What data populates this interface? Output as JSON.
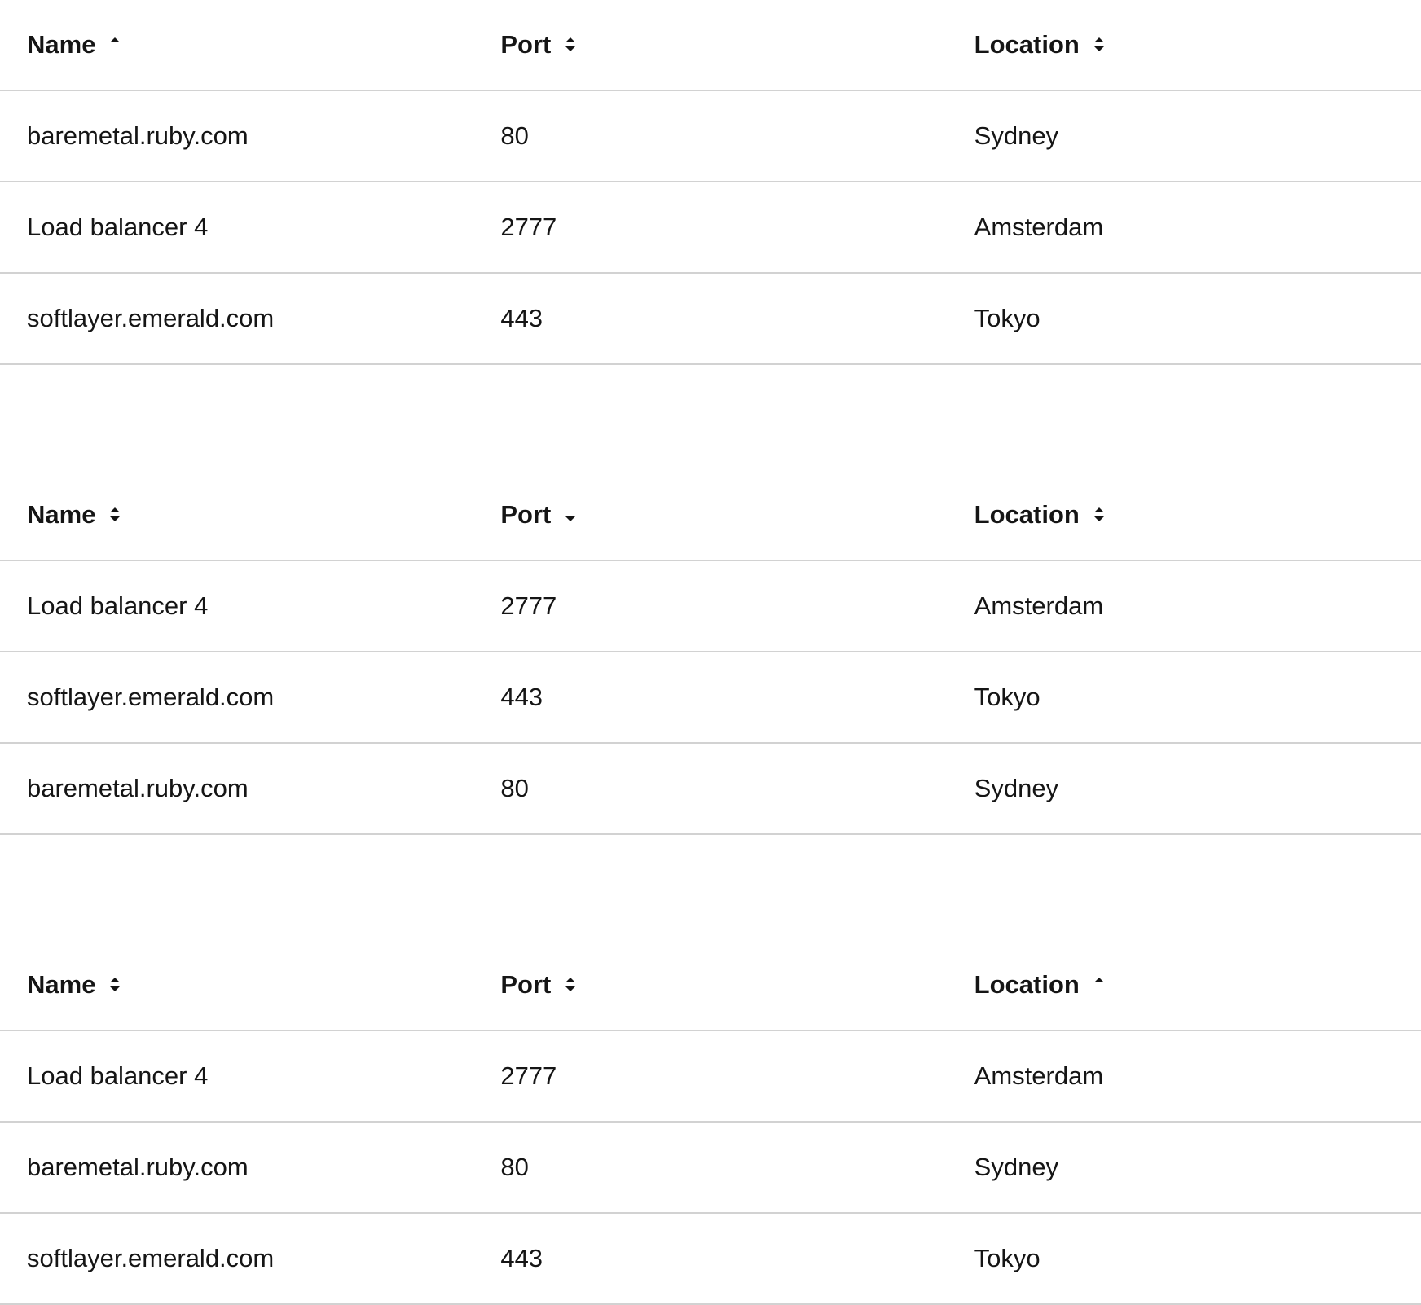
{
  "tables": [
    {
      "columns": [
        {
          "label": "Name",
          "sort": "ascending",
          "icon": "sort-up-icon"
        },
        {
          "label": "Port",
          "sort": "none",
          "icon": "sort-icon"
        },
        {
          "label": "Location",
          "sort": "none",
          "icon": "sort-icon"
        }
      ],
      "rows": [
        [
          "baremetal.ruby.com",
          "80",
          "Sydney"
        ],
        [
          "Load balancer 4",
          "2777",
          "Amsterdam"
        ],
        [
          "softlayer.emerald.com",
          "443",
          "Tokyo"
        ]
      ]
    },
    {
      "columns": [
        {
          "label": "Name",
          "sort": "none",
          "icon": "sort-icon"
        },
        {
          "label": "Port",
          "sort": "descending",
          "icon": "sort-down-icon"
        },
        {
          "label": "Location",
          "sort": "none",
          "icon": "sort-icon"
        }
      ],
      "rows": [
        [
          "Load balancer 4",
          "2777",
          "Amsterdam"
        ],
        [
          "softlayer.emerald.com",
          "443",
          "Tokyo"
        ],
        [
          "baremetal.ruby.com",
          "80",
          "Sydney"
        ]
      ]
    },
    {
      "columns": [
        {
          "label": "Name",
          "sort": "none",
          "icon": "sort-icon"
        },
        {
          "label": "Port",
          "sort": "none",
          "icon": "sort-icon"
        },
        {
          "label": "Location",
          "sort": "ascending",
          "icon": "sort-up-icon"
        }
      ],
      "rows": [
        [
          "Load balancer 4",
          "2777",
          "Amsterdam"
        ],
        [
          "baremetal.ruby.com",
          "80",
          "Sydney"
        ],
        [
          "softlayer.emerald.com",
          "443",
          "Tokyo"
        ]
      ]
    }
  ],
  "colors": {
    "text": "#151515",
    "border": "#d2d2d2"
  }
}
